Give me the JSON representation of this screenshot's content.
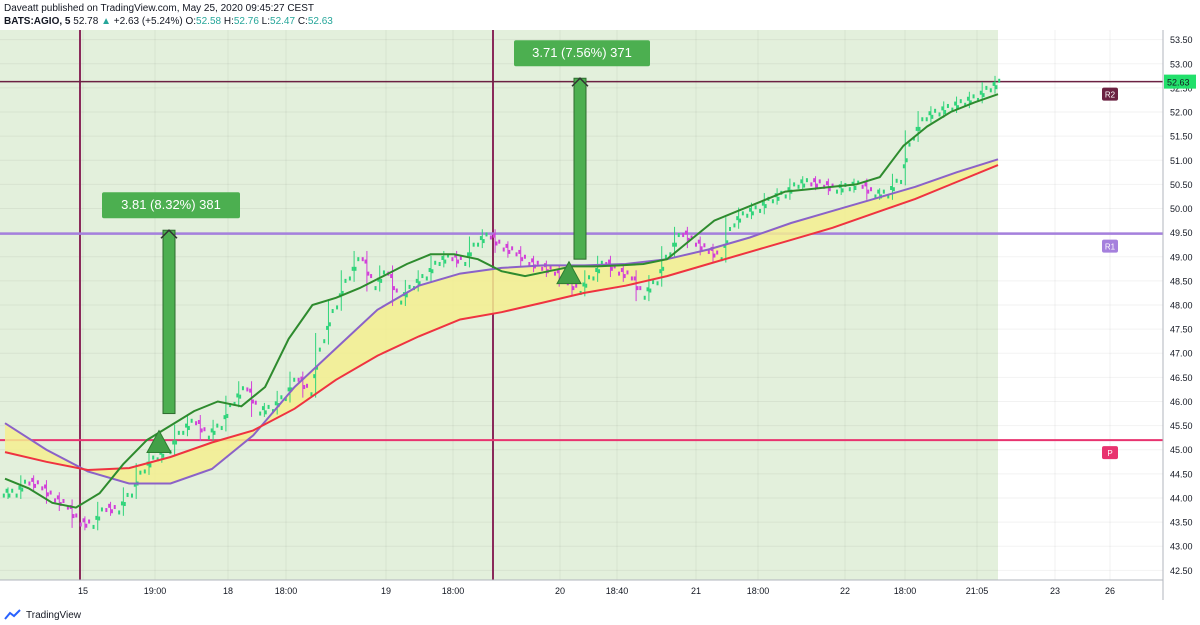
{
  "header": {
    "publish_line": "Daveatt published on TradingView.com, May 25, 2020 09:45:27 CEST",
    "symbol": "BATS:AGIO, 5",
    "last": "52.78",
    "change": "+2.63 (+5.24%)",
    "o_label": "O:",
    "o": "52.58",
    "h_label": "H:",
    "h": "52.76",
    "l_label": "L:",
    "l": "52.47",
    "c_label": "C:",
    "c": "52.63"
  },
  "footer": {
    "brand": "TradingView"
  },
  "colors": {
    "bg_green": "#e3f0dc",
    "price_up": "#2fd47a",
    "price_down": "#d23fd9",
    "ma_dark_green": "#2e8b2e",
    "cloud_fill": "#f5ef8f",
    "ma_purple": "#8b62c8",
    "ma_red": "#ef3340",
    "level_r2": "#6b2142",
    "level_r1": "#a580dd",
    "level_p": "#e8336f",
    "vline": "#8a2a5a",
    "annot_bg": "#4caf50",
    "price_label_bg": "#22e06b"
  },
  "chart_data": {
    "type": "line",
    "y_axis": {
      "ylim": [
        42.3,
        53.7
      ],
      "ticks": [
        "53.50",
        "53.00",
        "52.50",
        "52.00",
        "51.50",
        "51.00",
        "50.50",
        "50.00",
        "49.50",
        "49.00",
        "48.50",
        "48.00",
        "47.50",
        "47.00",
        "46.50",
        "46.00",
        "45.50",
        "45.00",
        "44.50",
        "44.00",
        "43.50",
        "43.00",
        "42.50"
      ],
      "last_price_label": "52.63"
    },
    "x_axis": {
      "ticks": [
        "15",
        "19:00",
        "18",
        "18:00",
        "19",
        "18:00",
        "20",
        "18:40",
        "21",
        "18:00",
        "22",
        "18:00",
        "21:05",
        "23",
        "26"
      ]
    },
    "levels": [
      {
        "name": "R2",
        "value": 52.63
      },
      {
        "name": "R1",
        "value": 49.48
      },
      {
        "name": "P",
        "value": 45.2
      }
    ],
    "annotations": [
      {
        "label": "3.81 (8.32%) 381",
        "from": 45.75,
        "to": 49.55
      },
      {
        "label": "3.71 (7.56%) 371",
        "from": 48.95,
        "to": 52.7
      }
    ],
    "signals": [
      {
        "type": "buy-triangle",
        "price": 45.15
      },
      {
        "type": "buy-triangle",
        "price": 48.65
      }
    ],
    "series": [
      {
        "type": "candles",
        "role": "price",
        "values": [
          44.1,
          44.35,
          44.25,
          44.0,
          43.85,
          43.5,
          43.45,
          43.8,
          43.75,
          44.1,
          44.6,
          44.85,
          45.0,
          45.4,
          45.6,
          45.3,
          45.5,
          46.0,
          46.3,
          45.8,
          45.85,
          46.1,
          46.5,
          46.2,
          47.3,
          48.0,
          48.6,
          49.0,
          48.4,
          48.7,
          48.1,
          48.4,
          48.6,
          48.9,
          49.0,
          48.9,
          49.3,
          49.45,
          49.2,
          49.1,
          48.9,
          48.8,
          48.7,
          48.5,
          48.3,
          48.6,
          48.9,
          48.7,
          48.6,
          48.2,
          48.5,
          49.1,
          49.5,
          49.3,
          49.15,
          49.0,
          49.7,
          49.9,
          50.0,
          50.2,
          50.3,
          50.5,
          50.55,
          50.5,
          50.4,
          50.45,
          50.5,
          50.3,
          50.3,
          50.6,
          51.5,
          51.9,
          52.0,
          52.1,
          52.2,
          52.3,
          52.5,
          52.63
        ]
      },
      {
        "type": "line",
        "role": "fast-ma",
        "values": [
          44.4,
          44.2,
          43.9,
          43.8,
          44.1,
          44.7,
          45.2,
          45.5,
          45.8,
          46.0,
          45.9,
          46.3,
          47.3,
          48.0,
          48.15,
          48.35,
          48.6,
          48.85,
          49.05,
          49.05,
          48.95,
          48.7,
          48.6,
          48.7,
          48.8,
          48.8,
          48.82,
          48.85,
          48.95,
          49.35,
          49.75,
          49.95,
          50.15,
          50.35,
          50.4,
          50.45,
          50.5,
          50.65,
          51.3,
          51.7,
          52.0,
          52.2,
          52.37
        ]
      },
      {
        "type": "line",
        "role": "slow-ma-upper",
        "values": [
          45.55,
          45.0,
          44.55,
          44.3,
          44.3,
          44.6,
          45.3,
          46.3,
          47.1,
          47.9,
          48.4,
          48.65,
          48.77,
          48.82,
          48.82,
          48.85,
          48.95,
          49.15,
          49.4,
          49.7,
          49.95,
          50.2,
          50.45,
          50.75,
          51.02
        ]
      },
      {
        "type": "line",
        "role": "slow-ma-lower",
        "values": [
          44.95,
          44.75,
          44.58,
          44.62,
          44.85,
          45.15,
          45.4,
          45.85,
          46.45,
          46.95,
          47.35,
          47.7,
          47.85,
          48.05,
          48.25,
          48.4,
          48.6,
          48.85,
          49.1,
          49.35,
          49.6,
          49.9,
          50.2,
          50.55,
          50.9
        ]
      }
    ]
  }
}
